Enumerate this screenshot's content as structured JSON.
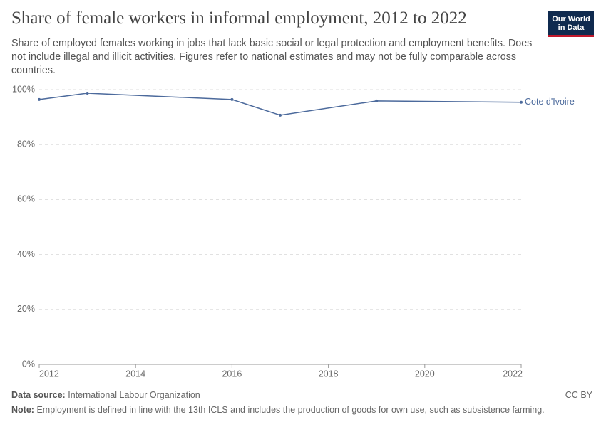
{
  "chart_data": {
    "type": "line",
    "title": "Share of female workers in informal employment, 2012 to 2022",
    "subtitle": "Share of employed females working in jobs that lack basic social or legal protection and employment benefits. Does not include illegal and illicit activities. Figures refer to national estimates and may not be fully comparable across countries.",
    "x": [
      2012,
      2013,
      2016,
      2017,
      2019,
      2022
    ],
    "series": [
      {
        "name": "Cote d'Ivoire",
        "color": "#4c6a9c",
        "values": [
          96.4,
          98.7,
          96.4,
          90.7,
          95.9,
          95.4
        ]
      }
    ],
    "xlim": [
      2012,
      2022
    ],
    "xticks": [
      2012,
      2014,
      2016,
      2018,
      2020,
      2022
    ],
    "ylim": [
      0,
      100
    ],
    "yticks": [
      {
        "value": 0,
        "label": "0%"
      },
      {
        "value": 20,
        "label": "20%"
      },
      {
        "value": 40,
        "label": "40%"
      },
      {
        "value": 60,
        "label": "60%"
      },
      {
        "value": 80,
        "label": "80%"
      },
      {
        "value": 100,
        "label": "100%"
      }
    ],
    "grid": true,
    "source_label": "Data source:",
    "source": "International Labour Organization",
    "note_label": "Note:",
    "note": "Employment is defined in line with the 13th ICLS and includes the production of goods for own use, such as subsistence farming.",
    "license": "CC BY",
    "logo": [
      "Our World",
      "in Data"
    ]
  }
}
